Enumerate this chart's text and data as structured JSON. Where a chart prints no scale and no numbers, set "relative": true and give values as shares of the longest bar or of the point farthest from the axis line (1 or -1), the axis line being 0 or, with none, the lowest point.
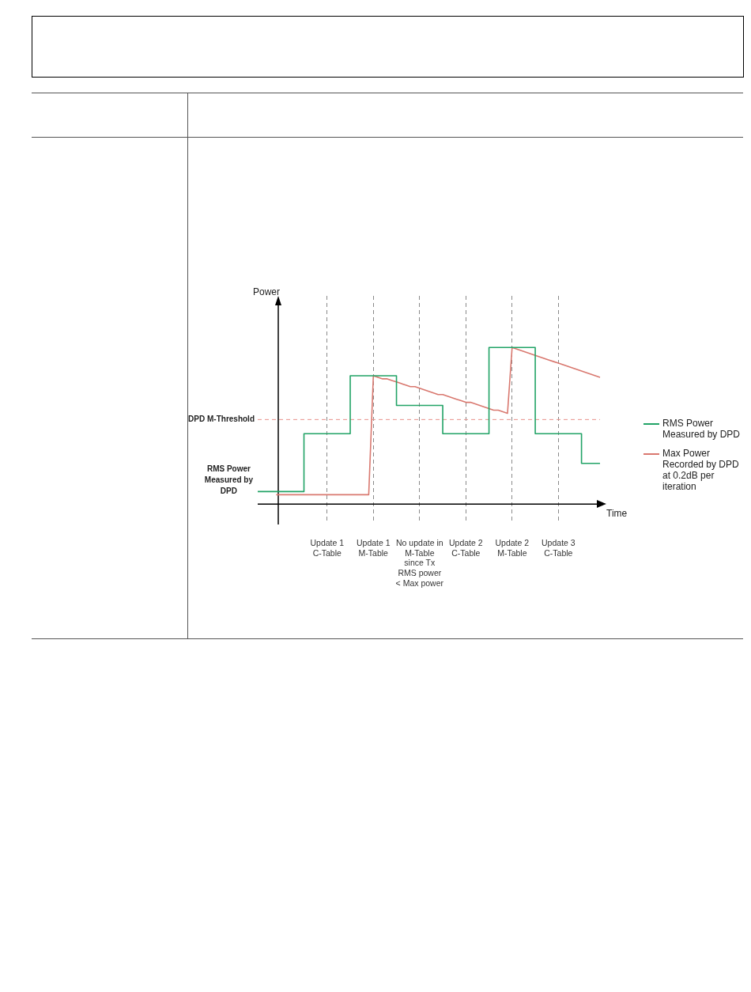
{
  "chart_data": {
    "type": "line",
    "relative": true,
    "xlabel": "Time",
    "tick_labels": "x",
    "grid": "x",
    "legend": "right",
    "marker": "none",
    "categories": [
      null,
      null,
      null,
      null,
      null,
      null,
      null,
      null,
      null,
      null,
      null,
      null,
      null,
      null,
      null,
      "Update 1 C-Table",
      null,
      null,
      null,
      null,
      null,
      null,
      null,
      null,
      null,
      "Update 1 M-Table",
      null,
      null,
      null,
      null,
      null,
      null,
      null,
      null,
      null,
      "No update in M-Table since Tx RMS power < Max power",
      null,
      null,
      null,
      null,
      null,
      null,
      null,
      null,
      null,
      "Update 2 C-Table",
      null,
      null,
      null,
      null,
      null,
      null,
      null,
      null,
      null,
      "Update 2 M-Table",
      null,
      null,
      null,
      null,
      null,
      null,
      null,
      null,
      null,
      "Update 3 C-Table",
      null,
      null,
      null,
      null,
      null,
      null,
      null,
      null,
      null
    ],
    "series": [
      {
        "name": "RMS Power Measured by DPD",
        "type": "step",
        "color": "#21a366",
        "values": [
          0.08,
          0.08,
          0.08,
          0.08,
          0.08,
          0.08,
          0.08,
          0.08,
          0.08,
          0.08,
          0.45,
          0.45,
          0.45,
          0.45,
          0.45,
          0.45,
          0.45,
          0.45,
          0.45,
          0.45,
          0.82,
          0.82,
          0.82,
          0.82,
          0.82,
          0.82,
          0.82,
          0.82,
          0.82,
          0.82,
          0.63,
          0.63,
          0.63,
          0.63,
          0.63,
          0.63,
          0.63,
          0.63,
          0.63,
          0.63,
          0.45,
          0.45,
          0.45,
          0.45,
          0.45,
          0.45,
          0.45,
          0.45,
          0.45,
          0.45,
          1,
          1,
          1,
          1,
          1,
          1,
          1,
          1,
          1,
          1,
          0.45,
          0.45,
          0.45,
          0.45,
          0.45,
          0.45,
          0.45,
          0.45,
          0.45,
          0.45,
          0.26,
          0.26,
          0.26,
          0.26,
          0.26
        ]
      },
      {
        "name": "Max Power Recorded by DPD at 0.2dB per iteration",
        "type": "line",
        "color": "#d9786f",
        "values": [
          null,
          null,
          null,
          null,
          0.06,
          0.06,
          0.06,
          0.06,
          0.06,
          0.06,
          0.06,
          0.06,
          0.06,
          0.06,
          0.06,
          0.06,
          0.06,
          0.06,
          0.06,
          0.06,
          0.06,
          0.06,
          0.06,
          0.06,
          0.06,
          0.82,
          0.81,
          0.8,
          0.8,
          0.79,
          0.78,
          0.77,
          0.76,
          0.75,
          0.75,
          0.74,
          0.73,
          0.72,
          0.71,
          0.7,
          0.7,
          0.69,
          0.68,
          0.67,
          0.66,
          0.65,
          0.65,
          0.64,
          0.63,
          0.62,
          0.61,
          0.6,
          0.6,
          0.59,
          0.58,
          1,
          0.99,
          0.98,
          0.97,
          0.96,
          0.95,
          0.94,
          0.93,
          0.92,
          0.91,
          0.9,
          0.89,
          0.88,
          0.87,
          0.86,
          0.85,
          0.84,
          0.83,
          0.82,
          0.81
        ]
      }
    ],
    "ref_lines": [
      {
        "axis": "y",
        "value": 0.54,
        "label": "DPD M-Threshold",
        "color": "#e8908a",
        "line_style": "dashed"
      }
    ],
    "annotations": [
      "Power",
      "RMS Power Measured by DPD"
    ]
  }
}
